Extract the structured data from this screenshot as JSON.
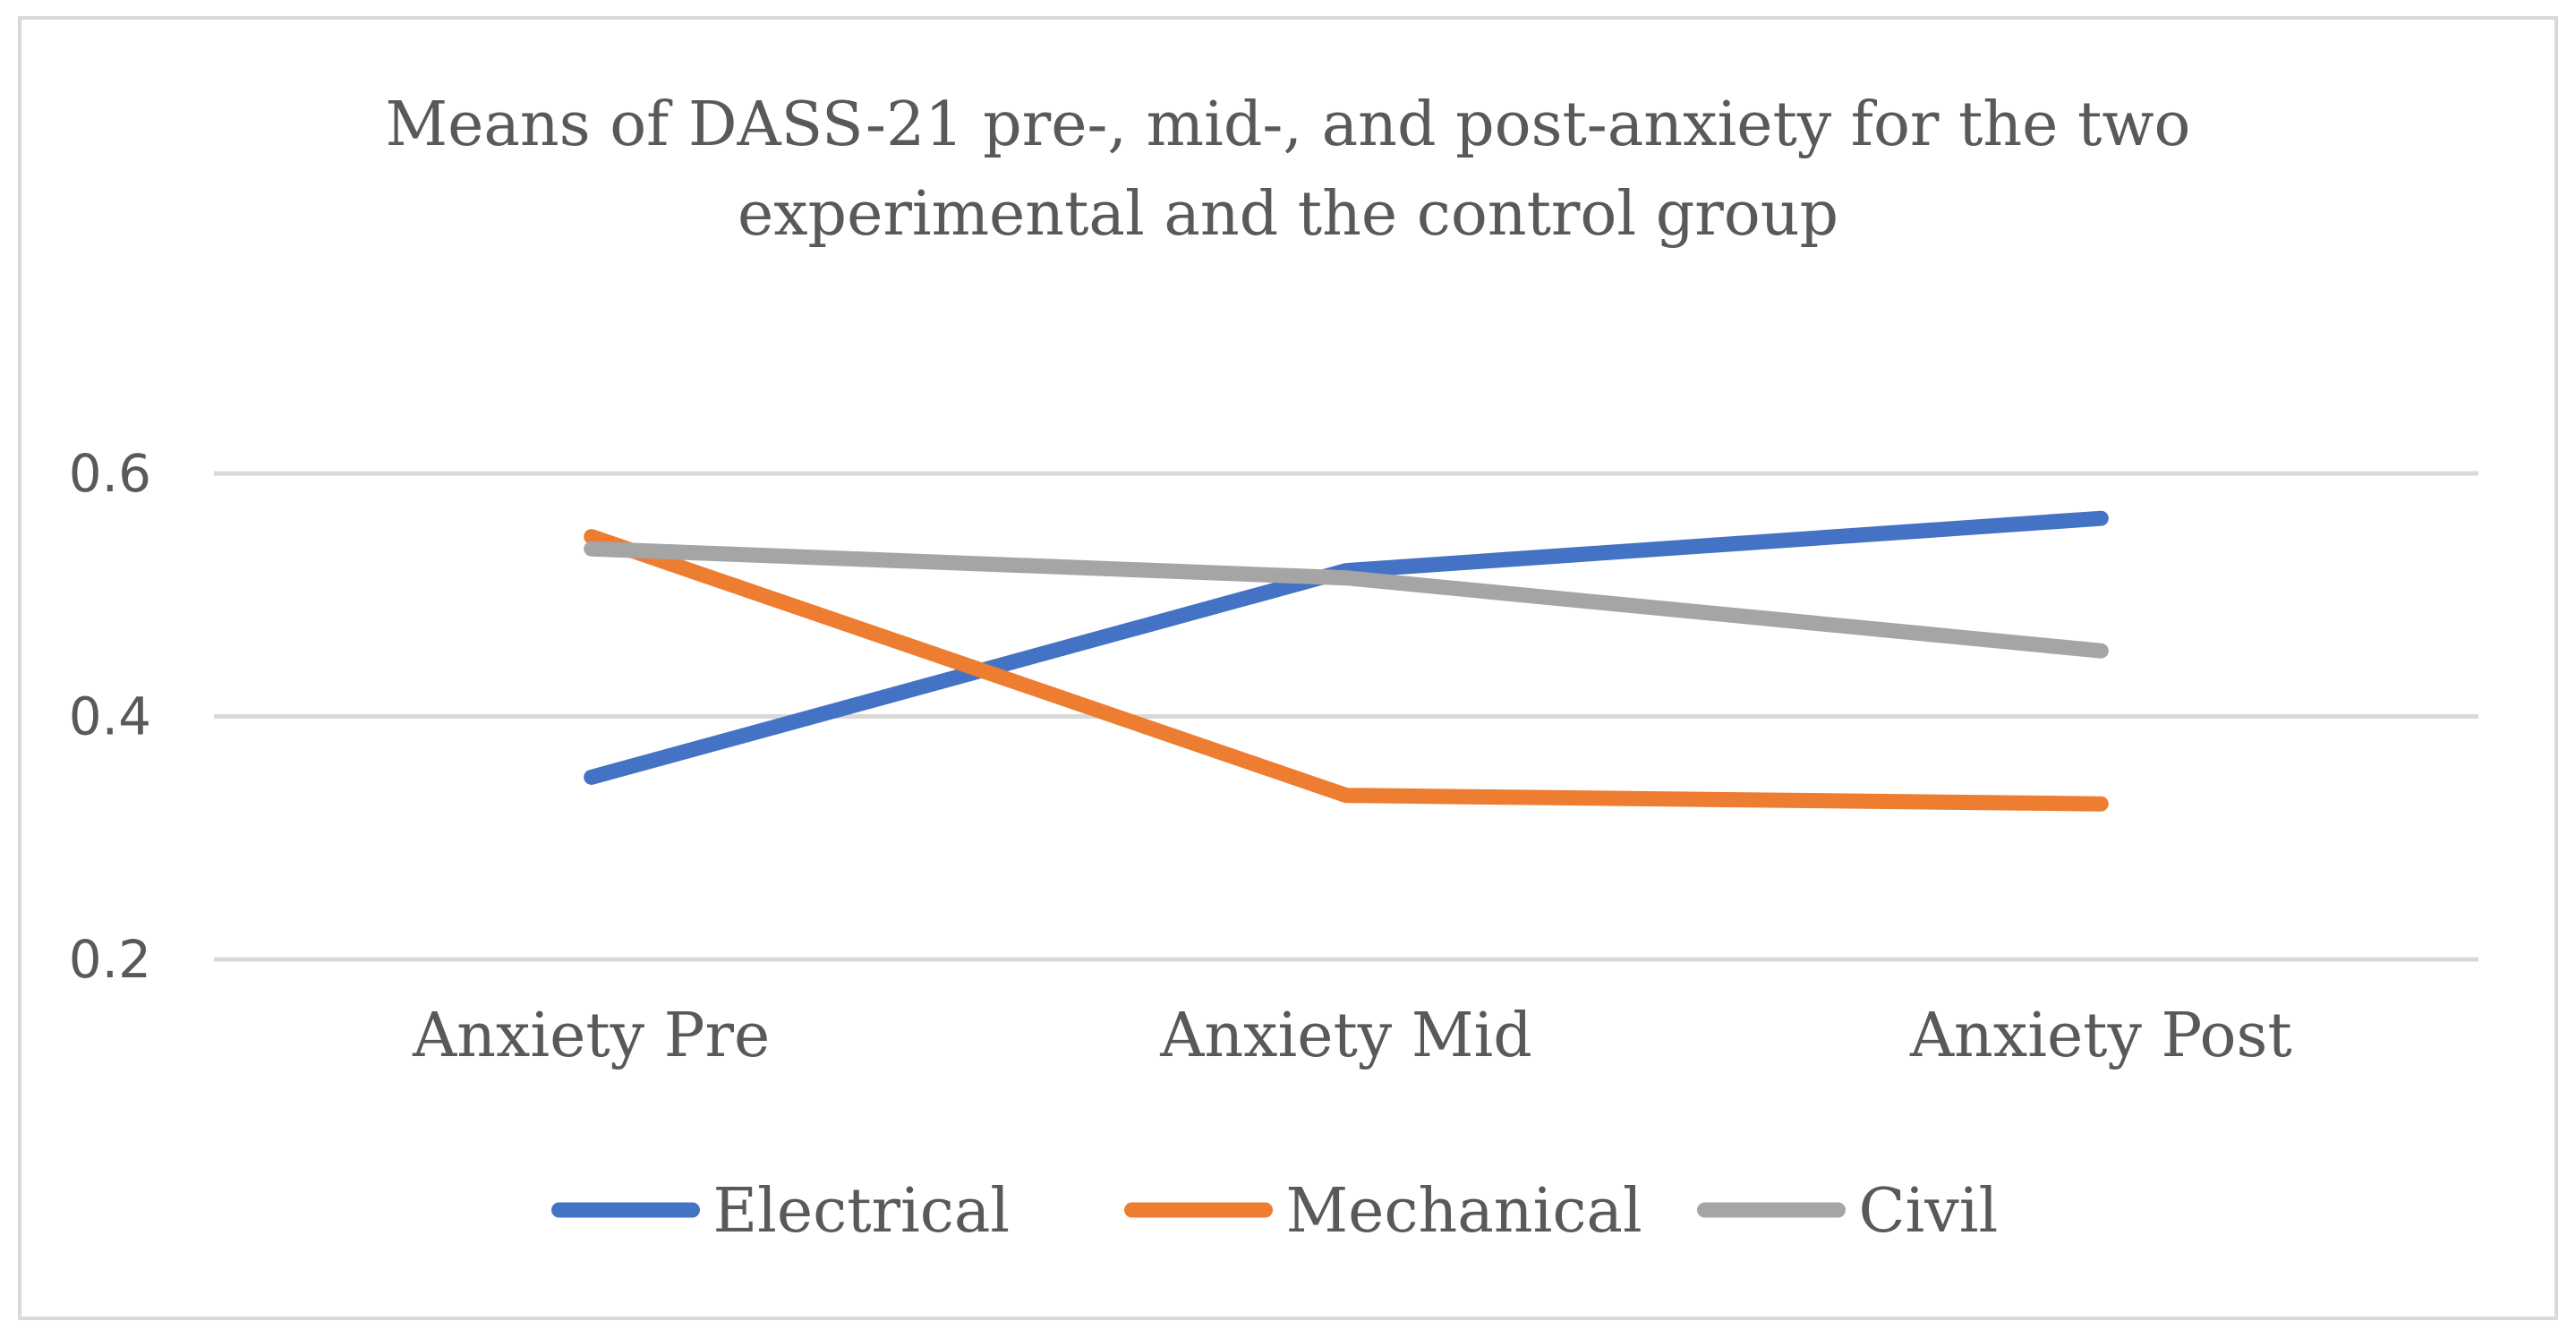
{
  "chart_data": {
    "type": "line",
    "title": "Means of DASS-21 pre-, mid-, and post-anxiety for the two experimental and the control group",
    "title_lines": [
      "Means of DASS-21 pre-, mid-, and post-anxiety for the two",
      "experimental and the control group"
    ],
    "xlabel": "",
    "ylabel": "",
    "categories": [
      "Anxiety Pre",
      "Anxiety Mid",
      "Anxiety Post"
    ],
    "ylim": [
      0.2,
      0.6
    ],
    "yticks": [
      "0.2",
      "0.4",
      "0.6"
    ],
    "ytick_values": [
      0.2,
      0.4,
      0.6
    ],
    "grid": true,
    "legend_position": "bottom",
    "series": [
      {
        "name": "Electrical",
        "color": "#4472c4",
        "values": [
          0.35,
          0.52,
          0.563
        ]
      },
      {
        "name": "Mechanical",
        "color": "#ed7d31",
        "values": [
          0.548,
          0.335,
          0.328
        ]
      },
      {
        "name": "Civil",
        "color": "#a5a5a5",
        "values": [
          0.538,
          0.514,
          0.454
        ]
      }
    ]
  }
}
